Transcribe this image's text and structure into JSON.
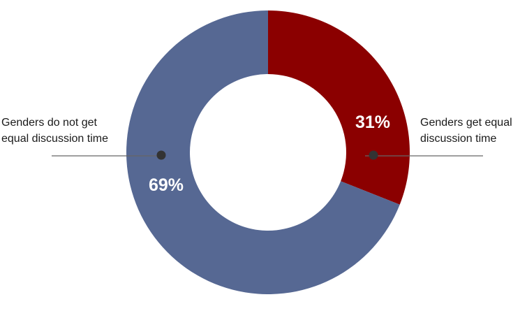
{
  "chart_data": {
    "type": "pie",
    "variant": "donut",
    "title": "",
    "slices": [
      {
        "label_lines": [
          "Genders get equal",
          "discussion time"
        ],
        "value": 31,
        "value_label": "31%",
        "color": "#8b0000"
      },
      {
        "label_lines": [
          "Genders do not get",
          "equal discussion time"
        ],
        "value": 69,
        "value_label": "69%",
        "color": "#566893"
      }
    ],
    "start": "12 o'clock",
    "direction": "clockwise",
    "legend": "none",
    "callout_line_color": "#666666",
    "callout_dot_color": "#333333"
  }
}
